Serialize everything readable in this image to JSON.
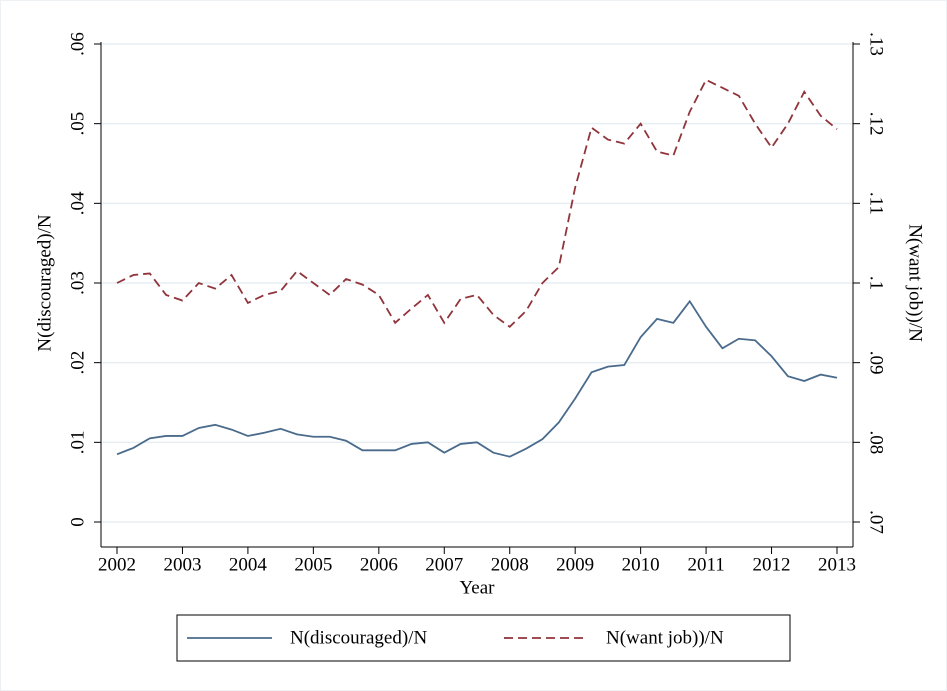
{
  "chart_data": {
    "type": "line",
    "xlabel": "Year",
    "ylabel": "N(discouraged)/N",
    "y2label": "N(want job))/N",
    "x": [
      2002,
      2002.25,
      2002.5,
      2002.75,
      2003,
      2003.25,
      2003.5,
      2003.75,
      2004,
      2004.25,
      2004.5,
      2004.75,
      2005,
      2005.25,
      2005.5,
      2005.75,
      2006,
      2006.25,
      2006.5,
      2006.75,
      2007,
      2007.25,
      2007.5,
      2007.75,
      2008,
      2008.25,
      2008.5,
      2008.75,
      2009,
      2009.25,
      2009.5,
      2009.75,
      2010,
      2010.25,
      2010.5,
      2010.75,
      2011,
      2011.25,
      2011.5,
      2011.75,
      2012,
      2012.25,
      2012.5,
      2012.75,
      2013
    ],
    "series": [
      {
        "name": "N(discouraged)/N",
        "color": "#4a6b8c",
        "dash": false,
        "axis": "y",
        "values": [
          0.0085,
          0.0093,
          0.0105,
          0.0108,
          0.0108,
          0.0118,
          0.0122,
          0.0116,
          0.0108,
          0.0112,
          0.0117,
          0.011,
          0.0107,
          0.0107,
          0.0102,
          0.009,
          0.009,
          0.009,
          0.0098,
          0.01,
          0.0087,
          0.0098,
          0.01,
          0.0087,
          0.0082,
          0.0092,
          0.0104,
          0.0125,
          0.0155,
          0.0188,
          0.0195,
          0.0197,
          0.0232,
          0.0255,
          0.025,
          0.0277,
          0.0245,
          0.0218,
          0.023,
          0.0228,
          0.0208,
          0.0183,
          0.0177,
          0.0185,
          0.0181
        ]
      },
      {
        "name": "N(want job))/N",
        "color": "#90353b",
        "dash": true,
        "axis": "y2",
        "values": [
          0.1,
          0.101,
          0.1012,
          0.0985,
          0.0978,
          0.1,
          0.0993,
          0.101,
          0.0975,
          0.0985,
          0.099,
          0.1015,
          0.1,
          0.0985,
          0.1005,
          0.0998,
          0.0985,
          0.095,
          0.0968,
          0.0985,
          0.095,
          0.098,
          0.0985,
          0.096,
          0.0945,
          0.0965,
          0.1,
          0.102,
          0.112,
          0.1195,
          0.118,
          0.1175,
          0.12,
          0.1165,
          0.116,
          0.1215,
          0.1255,
          0.1245,
          0.1235,
          0.12,
          0.117,
          0.12,
          0.124,
          0.121,
          0.1193
        ]
      }
    ],
    "xlim": [
      2002,
      2013
    ],
    "xticks": [
      2002,
      2003,
      2004,
      2005,
      2006,
      2007,
      2008,
      2009,
      2010,
      2011,
      2012,
      2013
    ],
    "ylim": [
      0,
      0.06
    ],
    "yticks": [
      0,
      {
        "value": 0.01,
        "label": ".01"
      },
      {
        "value": 0.02,
        "label": ".02"
      },
      {
        "value": 0.03,
        "label": ".03"
      },
      {
        "value": 0.04,
        "label": ".04"
      },
      {
        "value": 0.05,
        "label": ".05"
      },
      {
        "value": 0.06,
        "label": ".06"
      }
    ],
    "y2lim": [
      0.07,
      0.13
    ],
    "y2ticks": [
      {
        "value": 0.07,
        "label": ".07"
      },
      {
        "value": 0.08,
        "label": ".08"
      },
      {
        "value": 0.09,
        "label": ".09"
      },
      {
        "value": 0.1,
        "label": ".1"
      },
      {
        "value": 0.11,
        "label": ".11"
      },
      {
        "value": 0.12,
        "label": ".12"
      },
      {
        "value": 0.13,
        "label": ".13"
      }
    ],
    "grid": true,
    "legend": "bottom"
  }
}
